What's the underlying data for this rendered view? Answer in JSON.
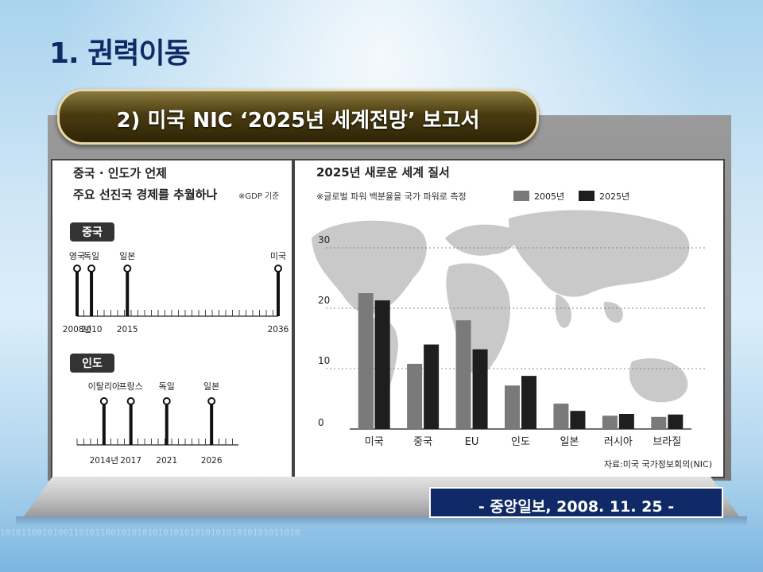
{
  "slide": {
    "title": "1. 권력이동",
    "banner": "2) 미국 NIC  ‘2025년 세계전망’  보고서",
    "source": "- 중앙일보, 2008. 11. 25 -",
    "binary": "101011001010011010110010101010101010101010101010101011010"
  },
  "left_panel": {
    "title_line1": "중국 · 인도가 언제",
    "title_line2": "주요 선진국 경제를 추월하나",
    "note": "※GDP 기준",
    "timelines": [
      {
        "label": "중국",
        "events": [
          {
            "country": "영국",
            "year": 2008
          },
          {
            "country": "독일",
            "year": 2010
          },
          {
            "country": "일본",
            "year": 2015
          },
          {
            "country": "미국",
            "year": 2036
          }
        ],
        "tick_labels": [
          "2008년",
          "2010",
          "2015",
          "2036"
        ]
      },
      {
        "label": "인도",
        "events": [
          {
            "country": "이탈리아",
            "year": 2014
          },
          {
            "country": "프랑스",
            "year": 2017
          },
          {
            "country": "독일",
            "year": 2021
          },
          {
            "country": "일본",
            "year": 2026
          }
        ],
        "tick_labels": [
          "2014년",
          "2017",
          "2021",
          "2026"
        ]
      }
    ]
  },
  "chart_data": {
    "type": "bar",
    "title": "2025년 새로운 세계 질서",
    "subtitle": "※글로벌 파워 백분율을 국가 파워로 측정",
    "categories": [
      "미국",
      "중국",
      "EU",
      "인도",
      "일본",
      "러시아",
      "브라질"
    ],
    "series": [
      {
        "name": "2005년",
        "values": [
          22.5,
          10.8,
          18.0,
          7.2,
          4.2,
          2.2,
          2.0
        ],
        "color": "#7a7a7a"
      },
      {
        "name": "2025년",
        "values": [
          21.3,
          14.0,
          13.2,
          8.8,
          3.0,
          2.5,
          2.4
        ],
        "color": "#1e1e1e"
      }
    ],
    "yticks": [
      "0",
      "10",
      "20",
      "30"
    ],
    "ylim": [
      0,
      30
    ],
    "grid": "dotted",
    "legend": "top",
    "source": "자료:미국 국가정보회의(NIC)"
  }
}
